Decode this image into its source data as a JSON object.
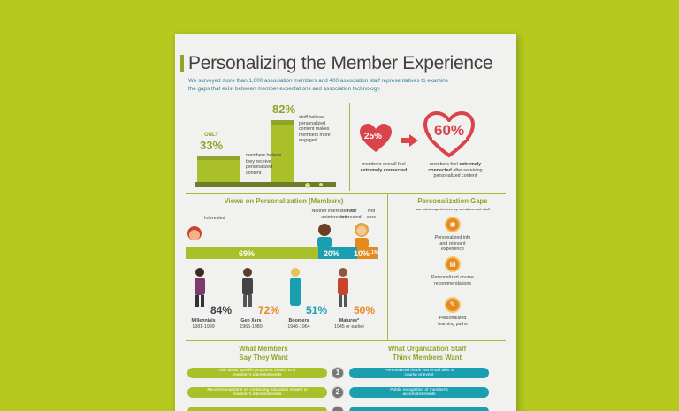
{
  "title": "Personalizing the Member Experience",
  "intro": "We surveyed more than 1,000 association members and 400 association staff representatives to examine the gaps that exist between member expectations and association technology.",
  "top_left": {
    "only_label": "ONLY",
    "member_pct": "33%",
    "member_text": "members believe they receive personalized content",
    "staff_pct": "82%",
    "staff_text": "staff believe personalized content makes members more engaged"
  },
  "top_right": {
    "heart_pct": "25%",
    "heart_sub": "↑≡↓",
    "caption_left_1": "members overall feel",
    "caption_left_bold": "extremely connected",
    "big_pct": "60%",
    "caption_right_1": "members feel",
    "caption_right_bold": "extremely connected",
    "caption_right_2": "after receiving personalized content"
  },
  "views": {
    "title": "Views on Personalization (Members)",
    "labels": {
      "interested": "Interested",
      "neither": "Neither interested nor uninterested",
      "not_interested": "Not interested",
      "not_sure": "Not sure"
    },
    "bar": {
      "interested": "69%",
      "neither": "20%",
      "not_interested": "10%",
      "not_sure": "1%"
    },
    "bar_values": {
      "interested": 69,
      "neither": 20,
      "not_interested": 10,
      "not_sure": 1
    },
    "colors": {
      "interested": "#aac02a",
      "neither": "#1a9fb0",
      "not_interested": "#e58a1f",
      "not_sure": "#999999"
    }
  },
  "generations": [
    {
      "pct": "84%",
      "name": "Millennials",
      "years": "1981-1999",
      "color": "#3f3f3f"
    },
    {
      "pct": "72%",
      "name": "Gen Xers",
      "years": "1965-1980",
      "color": "#e58a1f"
    },
    {
      "pct": "51%",
      "name": "Boomers",
      "years": "1946-1964",
      "color": "#1a9fb0"
    },
    {
      "pct": "50%",
      "name": "Matures*",
      "years": "1945 or earlier",
      "color": "#e58a1f"
    }
  ],
  "gaps": {
    "title": "Personalization Gaps",
    "subtitle": "low rated experiences by members and staff",
    "items": [
      "Personalized info and relevant experience",
      "Personalized course recommendations",
      "Personalized learning paths"
    ]
  },
  "bottom": {
    "left_title_1": "What Members",
    "left_title_2": "Say They Want",
    "right_title_1": "What Organization Staff",
    "right_title_2": "Think Members Want",
    "rows": [
      {
        "num": "1",
        "left": "Info about specific programs related to a member's interests/needs",
        "right": "Personalized thank you email after a course or event"
      },
      {
        "num": "2",
        "left": "Recommendations on continuing education related to member's interests/needs",
        "right": "Public recognition of member's accomplishments"
      }
    ]
  }
}
